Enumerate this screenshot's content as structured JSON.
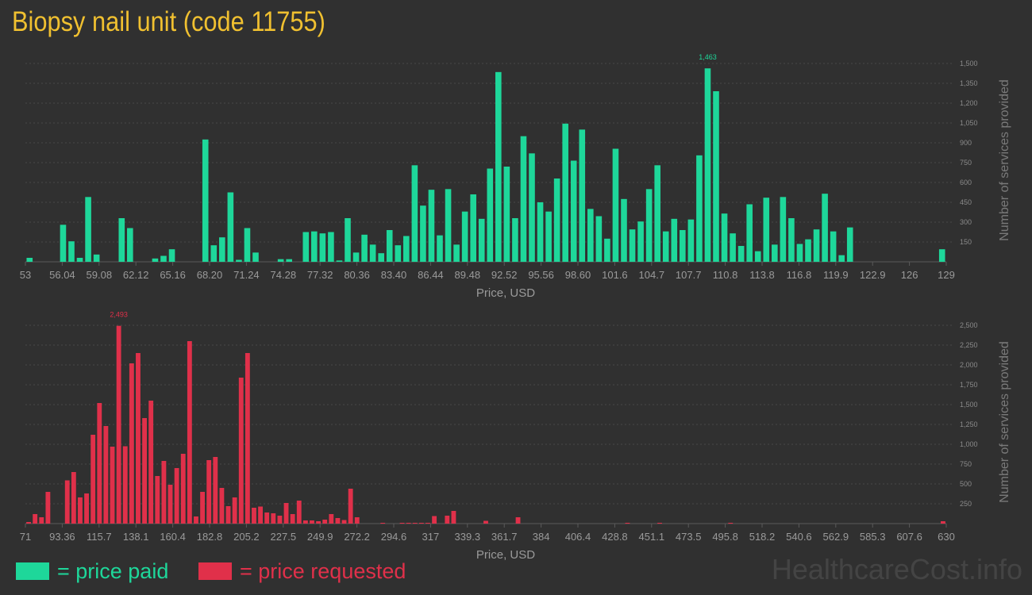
{
  "title": "Biopsy nail unit (code 11755)",
  "watermark": "HealthcareCost.info",
  "colors": {
    "paid": "#1ed79a",
    "requested": "#e0304a",
    "title": "#f0c030",
    "background": "#303030"
  },
  "legend": {
    "paid": "= price paid",
    "requested": "= price requested"
  },
  "chart_data": [
    {
      "type": "bar",
      "series_name": "price paid",
      "xlabel": "Price, USD",
      "ylabel": "Number of services provided",
      "xlim": [
        53,
        129
      ],
      "ylim": [
        0,
        1600
      ],
      "x_ticks": [
        "53",
        "56.04",
        "59.08",
        "62.12",
        "65.16",
        "68.20",
        "71.24",
        "74.28",
        "77.32",
        "80.36",
        "83.40",
        "86.44",
        "89.48",
        "92.52",
        "95.56",
        "98.60",
        "101.6",
        "104.7",
        "107.7",
        "110.8",
        "113.8",
        "116.8",
        "119.9",
        "122.9",
        "126",
        "129"
      ],
      "y_ticks": [
        "150",
        "300",
        "450",
        "600",
        "750",
        "900",
        "1,050",
        "1,200",
        "1,350",
        "1,500"
      ],
      "y_tick_values": [
        150,
        300,
        450,
        600,
        750,
        900,
        1050,
        1200,
        1350,
        1500
      ],
      "peak_label": "1,463",
      "grid": true,
      "values": [
        30,
        0,
        0,
        0,
        280,
        155,
        30,
        490,
        55,
        0,
        0,
        330,
        255,
        0,
        0,
        25,
        45,
        95,
        0,
        0,
        0,
        925,
        125,
        185,
        525,
        15,
        255,
        70,
        0,
        0,
        20,
        20,
        0,
        225,
        230,
        215,
        225,
        10,
        330,
        70,
        205,
        130,
        65,
        240,
        125,
        195,
        730,
        425,
        545,
        200,
        550,
        130,
        380,
        510,
        325,
        705,
        1435,
        720,
        330,
        950,
        820,
        450,
        380,
        630,
        1045,
        765,
        1000,
        400,
        345,
        175,
        855,
        475,
        245,
        305,
        550,
        730,
        230,
        325,
        240,
        320,
        805,
        1463,
        1290,
        365,
        215,
        120,
        435,
        80,
        485,
        130,
        490,
        330,
        135,
        170,
        245,
        515,
        230,
        50,
        260,
        0,
        0,
        0,
        0,
        0,
        0,
        0,
        0,
        0,
        0,
        95
      ]
    },
    {
      "type": "bar",
      "series_name": "price requested",
      "xlabel": "Price, USD",
      "ylabel": "Number of services provided",
      "xlim": [
        71,
        630
      ],
      "ylim": [
        0,
        2700
      ],
      "x_ticks": [
        "71",
        "93.36",
        "115.7",
        "138.1",
        "160.4",
        "182.8",
        "205.2",
        "227.5",
        "249.9",
        "272.2",
        "294.6",
        "317",
        "339.3",
        "361.7",
        "384",
        "406.4",
        "428.8",
        "451.1",
        "473.5",
        "495.8",
        "518.2",
        "540.6",
        "562.9",
        "585.3",
        "607.6",
        "630"
      ],
      "y_ticks": [
        "250",
        "500",
        "750",
        "1,000",
        "1,250",
        "1,500",
        "1,750",
        "2,000",
        "2,250",
        "2,500"
      ],
      "y_tick_values": [
        250,
        500,
        750,
        1000,
        1250,
        1500,
        1750,
        2000,
        2250,
        2500
      ],
      "peak_label": "2,493",
      "grid": true,
      "values": [
        20,
        120,
        80,
        400,
        0,
        0,
        545,
        650,
        330,
        380,
        1120,
        1520,
        1230,
        970,
        2493,
        975,
        2020,
        2150,
        1330,
        1550,
        600,
        790,
        490,
        700,
        880,
        2300,
        90,
        400,
        800,
        840,
        450,
        220,
        330,
        1840,
        2150,
        200,
        215,
        140,
        130,
        100,
        260,
        120,
        290,
        40,
        40,
        30,
        50,
        120,
        70,
        45,
        440,
        80,
        0,
        0,
        0,
        10,
        0,
        0,
        10,
        10,
        10,
        10,
        10,
        95,
        0,
        100,
        160,
        0,
        0,
        0,
        0,
        35,
        0,
        0,
        0,
        0,
        80,
        0,
        0,
        0,
        0,
        0,
        0,
        0,
        0,
        0,
        0,
        0,
        0,
        0,
        0,
        0,
        0,
        10,
        0,
        0,
        0,
        0,
        10,
        0,
        0,
        0,
        0,
        0,
        0,
        0,
        0,
        0,
        0,
        10,
        0,
        0,
        0,
        0,
        0,
        0,
        0,
        0,
        0,
        0,
        0,
        0,
        0,
        0,
        0,
        0,
        0,
        0,
        0,
        0,
        0,
        0,
        0,
        0,
        0,
        0,
        0,
        0,
        0,
        0,
        0,
        0,
        30
      ]
    }
  ]
}
